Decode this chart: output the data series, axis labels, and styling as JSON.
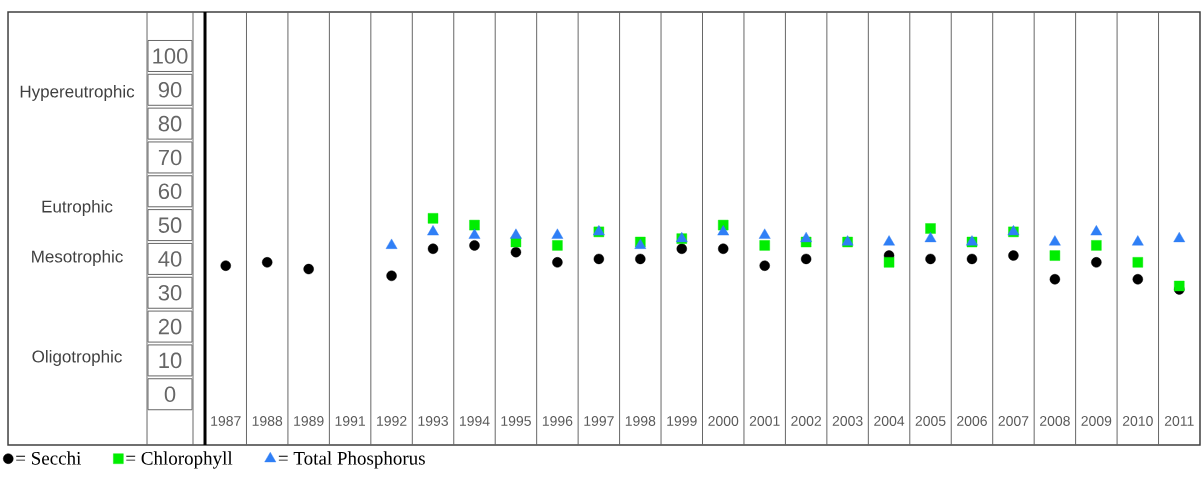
{
  "chart_data": {
    "type": "scatter",
    "categories": [
      "1987",
      "1988",
      "1989",
      "1991",
      "1992",
      "1993",
      "1994",
      "1995",
      "1996",
      "1997",
      "1998",
      "1999",
      "2000",
      "2001",
      "2002",
      "2003",
      "2004",
      "2005",
      "2006",
      "2007",
      "2008",
      "2009",
      "2010",
      "2011"
    ],
    "series": [
      {
        "name": "= Secchi",
        "color": "#000000",
        "marker": "circle",
        "values": [
          38,
          39,
          37,
          null,
          35,
          43,
          44,
          42,
          39,
          40,
          40,
          43,
          43,
          38,
          40,
          null,
          41,
          40,
          40,
          41,
          34,
          39,
          34,
          31
        ]
      },
      {
        "name": "= Chlorophyll",
        "color": "#00ee00",
        "marker": "square",
        "values": [
          null,
          null,
          null,
          null,
          null,
          52,
          50,
          45,
          44,
          48,
          45,
          46,
          50,
          44,
          45,
          45,
          39,
          49,
          45,
          48,
          41,
          44,
          39,
          32
        ]
      },
      {
        "name": "= Total Phosphorus",
        "color": "#2f7ff6",
        "marker": "triangle",
        "values": [
          null,
          null,
          null,
          null,
          44,
          48,
          47,
          47,
          47,
          48,
          44,
          46,
          48,
          47,
          46,
          45,
          45,
          46,
          45,
          48,
          45,
          48,
          45,
          46
        ]
      }
    ],
    "ylim": [
      -15,
      113
    ],
    "yticks": [
      0,
      10,
      20,
      30,
      40,
      50,
      60,
      70,
      80,
      90,
      100
    ],
    "annotations": [
      "Hypereutrophic",
      "Eutrophic",
      "Mesotrophic",
      "Oligotrophic"
    ],
    "grid": "x",
    "legend": "bottom left"
  }
}
